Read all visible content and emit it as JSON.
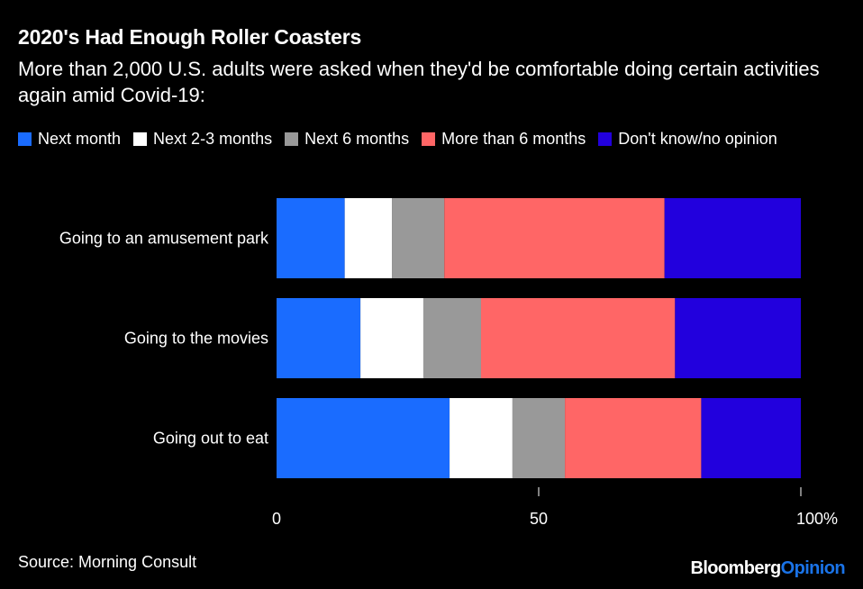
{
  "title": "2020's Had Enough Roller Coasters",
  "subtitle": "More than 2,000 U.S. adults were asked when they'd be comfortable doing certain activities again amid Covid-19:",
  "source": "Source: Morning Consult",
  "brand": {
    "part1": "Bloomberg",
    "part2": "Opinion",
    "part1_color": "#ffffff",
    "part2_color": "#1a73e8"
  },
  "chart_data": {
    "type": "bar",
    "orientation": "horizontal",
    "stacked": true,
    "categories": [
      "Going to an amusement park",
      "Going to the movies",
      "Going out to eat"
    ],
    "series": [
      {
        "name": "Next month",
        "color": "#1a6cff",
        "values": [
          13,
          16,
          33
        ]
      },
      {
        "name": "Next 2-3 months",
        "color": "#ffffff",
        "values": [
          9,
          12,
          12
        ]
      },
      {
        "name": "Next 6 months",
        "color": "#999999",
        "values": [
          10,
          11,
          10
        ]
      },
      {
        "name": "More than 6 months",
        "color": "#ff6666",
        "values": [
          42,
          37,
          26
        ]
      },
      {
        "name": "Don't know/no opinion",
        "color": "#2200dd",
        "values": [
          26,
          24,
          19
        ]
      }
    ],
    "xlim": [
      0,
      100
    ],
    "xticks": [
      0,
      50,
      100
    ],
    "xtick_labels": [
      "0",
      "50",
      "100%"
    ],
    "legend_position": "top",
    "grid": false
  }
}
